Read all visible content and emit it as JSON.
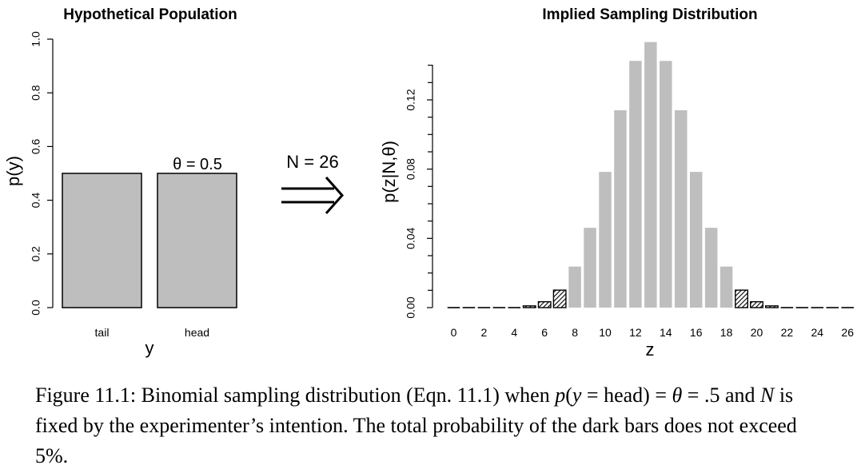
{
  "chart_data": [
    {
      "type": "bar",
      "title": "Hypothetical Population",
      "xlabel": "y",
      "ylabel": "p(y)",
      "categories": [
        "tail",
        "head"
      ],
      "values": [
        0.5,
        0.5
      ],
      "ylim": [
        0,
        1
      ],
      "yticks": [
        "0.0",
        "0.2",
        "0.4",
        "0.6",
        "0.8",
        "1.0"
      ],
      "annotation": "θ = 0.5",
      "bar_color": "#bebebe"
    },
    {
      "type": "bar",
      "title": "Implied Sampling Distribution",
      "xlabel": "z",
      "ylabel": "p(z|N,θ)",
      "x": [
        0,
        1,
        2,
        3,
        4,
        5,
        6,
        7,
        8,
        9,
        10,
        11,
        12,
        13,
        14,
        15,
        16,
        17,
        18,
        19,
        20,
        21,
        22,
        23,
        24,
        25,
        26
      ],
      "values": [
        1e-08,
        4e-07,
        5e-06,
        4e-05,
        0.0002,
        0.001,
        0.0034,
        0.0101,
        0.0237,
        0.0461,
        0.0784,
        0.114,
        0.1425,
        0.1534,
        0.1425,
        0.114,
        0.0784,
        0.0461,
        0.0237,
        0.0101,
        0.0034,
        0.001,
        0.0002,
        4e-05,
        5e-06,
        4e-07,
        1e-08
      ],
      "dark": [
        true,
        true,
        true,
        true,
        true,
        true,
        true,
        true,
        false,
        false,
        false,
        false,
        false,
        false,
        false,
        false,
        false,
        false,
        false,
        true,
        true,
        true,
        true,
        true,
        true,
        true,
        true
      ],
      "xticks": [
        "0",
        "2",
        "4",
        "6",
        "8",
        "10",
        "12",
        "14",
        "16",
        "18",
        "20",
        "22",
        "24",
        "26"
      ],
      "yticks": [
        "0.00",
        "0.04",
        "0.08",
        "0.12"
      ],
      "ylim": [
        0,
        0.155
      ],
      "bar_color": "#bebebe"
    }
  ],
  "arrow": {
    "label": "N = 26",
    "symbol": "⟹"
  },
  "caption": {
    "figure_label": "Figure 11.1:",
    "text_1": " Binomial sampling distribution (Eqn. 11.1) when ",
    "math_1": "p",
    "math_2": "(",
    "math_3": "y",
    "math_4": " = head) = ",
    "math_5": "θ",
    "math_6": " = .5 and ",
    "math_7": "N",
    "text_2": " is fixed by the experimenter’s intention. The total probability of the dark bars does not exceed 5%."
  }
}
